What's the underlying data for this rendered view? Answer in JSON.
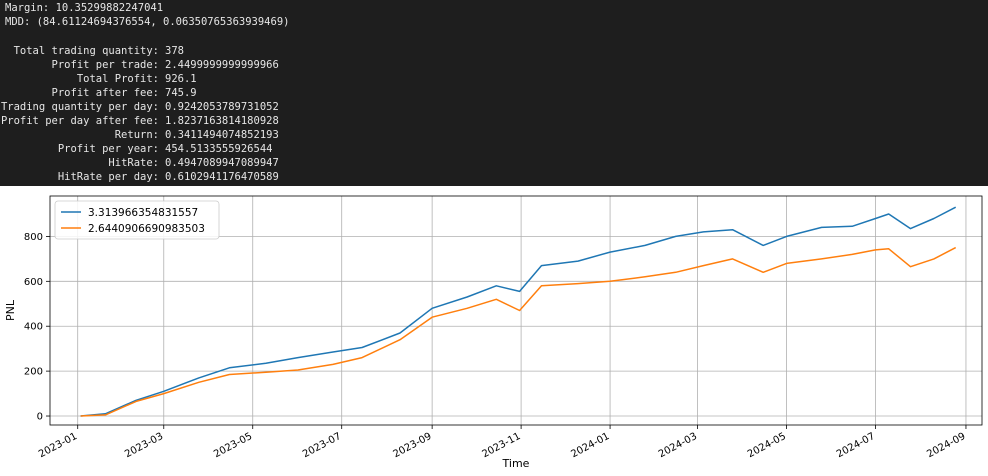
{
  "console": {
    "margin_line": "Margin: 10.35299882247041",
    "mdd_line": "MDD: (84.61124694376554, 0.06350765363939469)",
    "stats": [
      {
        "label": "Total trading quantity:",
        "value": "378"
      },
      {
        "label": "Profit per trade:",
        "value": "2.4499999999999966"
      },
      {
        "label": "Total Profit:",
        "value": "926.1"
      },
      {
        "label": "Profit after fee:",
        "value": "745.9"
      },
      {
        "label": "Trading quantity per day:",
        "value": "0.9242053789731052"
      },
      {
        "label": "Profit per day after fee:",
        "value": "1.8237163814180928"
      },
      {
        "label": "Return:",
        "value": "0.3411494074852193"
      },
      {
        "label": "Profit per year:",
        "value": "454.5133555926544"
      },
      {
        "label": "HitRate:",
        "value": "0.4947089947089947"
      },
      {
        "label": "HitRate per day:",
        "value": "0.6102941176470589"
      }
    ]
  },
  "chart_data": {
    "type": "line",
    "xlabel": "Time",
    "ylabel": "PNL",
    "ylim": [
      -40,
      980
    ],
    "xlim": [
      "2022-12-13",
      "2024-09-12"
    ],
    "grid": true,
    "legend_position": "top-left",
    "x_ticks": [
      "2023-01",
      "2023-03",
      "2023-05",
      "2023-07",
      "2023-09",
      "2023-11",
      "2024-01",
      "2024-03",
      "2024-05",
      "2024-07",
      "2024-09"
    ],
    "y_ticks": [
      0,
      200,
      400,
      600,
      800
    ],
    "x": [
      "2023-01-03",
      "2023-01-20",
      "2023-02-10",
      "2023-03-01",
      "2023-03-25",
      "2023-04-15",
      "2023-05-10",
      "2023-06-01",
      "2023-06-25",
      "2023-07-15",
      "2023-08-10",
      "2023-09-01",
      "2023-09-25",
      "2023-10-15",
      "2023-10-31",
      "2023-11-15",
      "2023-12-10",
      "2024-01-01",
      "2024-01-25",
      "2024-02-15",
      "2024-03-05",
      "2024-03-25",
      "2024-04-15",
      "2024-05-01",
      "2024-05-25",
      "2024-06-15",
      "2024-07-01",
      "2024-07-10",
      "2024-07-25",
      "2024-08-10",
      "2024-08-25"
    ],
    "series": [
      {
        "name": "3.313966354831557",
        "color": "#1f77b4",
        "values": [
          0,
          10,
          70,
          110,
          170,
          215,
          235,
          260,
          285,
          305,
          370,
          480,
          530,
          580,
          555,
          670,
          690,
          730,
          760,
          800,
          820,
          830,
          760,
          800,
          840,
          845,
          880,
          900,
          835,
          880,
          930
        ]
      },
      {
        "name": "2.6440906690983503",
        "color": "#ff7f0e",
        "values": [
          0,
          5,
          65,
          100,
          150,
          185,
          195,
          205,
          230,
          260,
          340,
          440,
          480,
          520,
          470,
          580,
          590,
          600,
          620,
          640,
          670,
          700,
          640,
          680,
          700,
          720,
          740,
          745,
          665,
          700,
          750
        ]
      }
    ]
  }
}
